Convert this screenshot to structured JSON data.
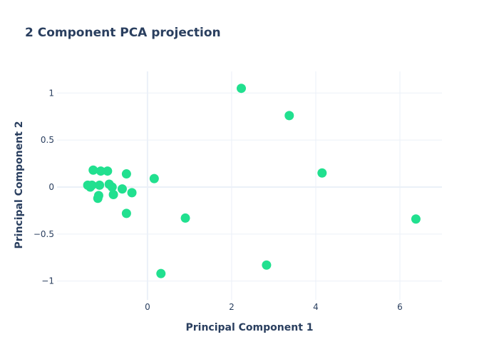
{
  "colors": {
    "marker": "#21e08f",
    "grid": "#ebf0f8",
    "text": "#2a3f5f",
    "background": "#ffffff"
  },
  "chart_data": {
    "type": "scatter",
    "title": "2 Component PCA projection",
    "xlabel": "Principal Component 1",
    "ylabel": "Principal Component 2",
    "xlim": [
      -2.15,
      7.0
    ],
    "ylim": [
      -1.2,
      1.23
    ],
    "grid": true,
    "legend": "none",
    "x_ticks": [
      0,
      2,
      4,
      6
    ],
    "x_tick_labels": [
      "0",
      "2",
      "4",
      "6"
    ],
    "y_ticks": [
      -1,
      -0.5,
      0,
      0.5,
      1
    ],
    "y_tick_labels": [
      "−1",
      "−0.5",
      "0",
      "0.5",
      "1"
    ],
    "series": [
      {
        "points": [
          {
            "x": -1.42,
            "y": 0.02
          },
          {
            "x": -1.36,
            "y": 0.0
          },
          {
            "x": -1.32,
            "y": 0.02
          },
          {
            "x": -1.29,
            "y": 0.18
          },
          {
            "x": -1.18,
            "y": -0.12
          },
          {
            "x": -1.16,
            "y": -0.09
          },
          {
            "x": -1.14,
            "y": 0.02
          },
          {
            "x": -1.11,
            "y": 0.17
          },
          {
            "x": -0.95,
            "y": 0.17
          },
          {
            "x": -0.91,
            "y": 0.03
          },
          {
            "x": -0.84,
            "y": 0.0
          },
          {
            "x": -0.81,
            "y": -0.08
          },
          {
            "x": -0.6,
            "y": -0.02
          },
          {
            "x": -0.5,
            "y": 0.14
          },
          {
            "x": -0.5,
            "y": -0.28
          },
          {
            "x": -0.37,
            "y": -0.06
          },
          {
            "x": 0.16,
            "y": 0.09
          },
          {
            "x": 0.32,
            "y": -0.92
          },
          {
            "x": 0.9,
            "y": -0.33
          },
          {
            "x": 2.23,
            "y": 1.05
          },
          {
            "x": 2.83,
            "y": -0.83
          },
          {
            "x": 3.37,
            "y": 0.76
          },
          {
            "x": 4.15,
            "y": 0.15
          },
          {
            "x": 6.38,
            "y": -0.34
          }
        ]
      }
    ]
  }
}
